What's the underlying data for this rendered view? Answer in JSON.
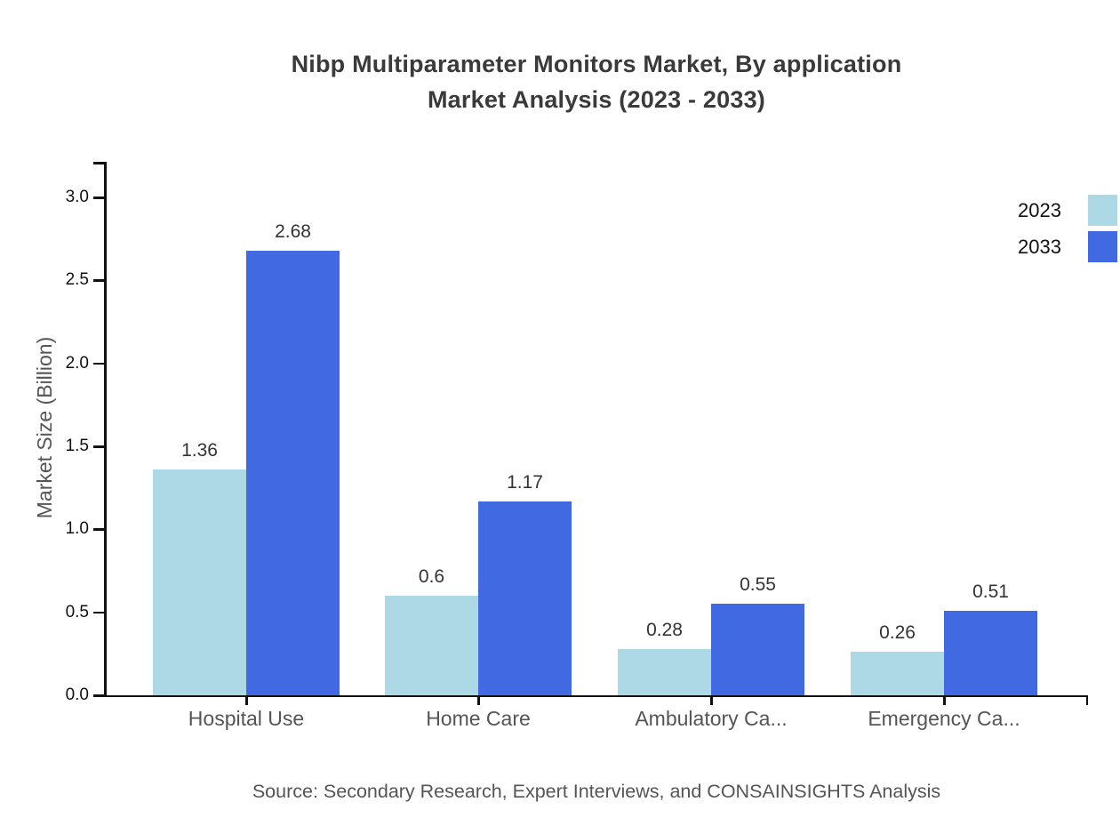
{
  "title": {
    "line1": "Nibp Multiparameter Monitors Market, By application",
    "line2": "Market Analysis (2023 - 2033)"
  },
  "source": "Source: Secondary Research, Expert Interviews, and CONSAINSIGHTS Analysis",
  "colors": {
    "series_2023": "#ADD8E6",
    "series_2033": "#4169E1",
    "axis": "#111111",
    "title_text": "#3a3a3a",
    "muted_text": "#555555",
    "value_label_text": "#333333"
  },
  "legend": {
    "position": "top-right",
    "entries": [
      {
        "label": "2023",
        "color": "#ADD8E6"
      },
      {
        "label": "2033",
        "color": "#4169E1"
      }
    ]
  },
  "chart_data": {
    "type": "bar",
    "title": "Nibp Multiparameter Monitors Market, By application Market Analysis (2023 - 2033)",
    "categories": [
      "Hospital Use",
      "Home Care",
      "Ambulatory Ca...",
      "Emergency Ca..."
    ],
    "series": [
      {
        "name": "2023",
        "color": "#ADD8E6",
        "values": [
          1.36,
          0.6,
          0.28,
          0.26
        ]
      },
      {
        "name": "2033",
        "color": "#4169E1",
        "values": [
          2.68,
          1.17,
          0.55,
          0.51
        ]
      }
    ],
    "xlabel": "",
    "ylabel": "Market Size (Billion)",
    "ylim": [
      0,
      3.2
    ],
    "yticks": [
      "0.0",
      "0.5",
      "1.0",
      "1.5",
      "2.0",
      "2.5",
      "3.0"
    ],
    "grid": false,
    "legend_position": "top-right"
  }
}
